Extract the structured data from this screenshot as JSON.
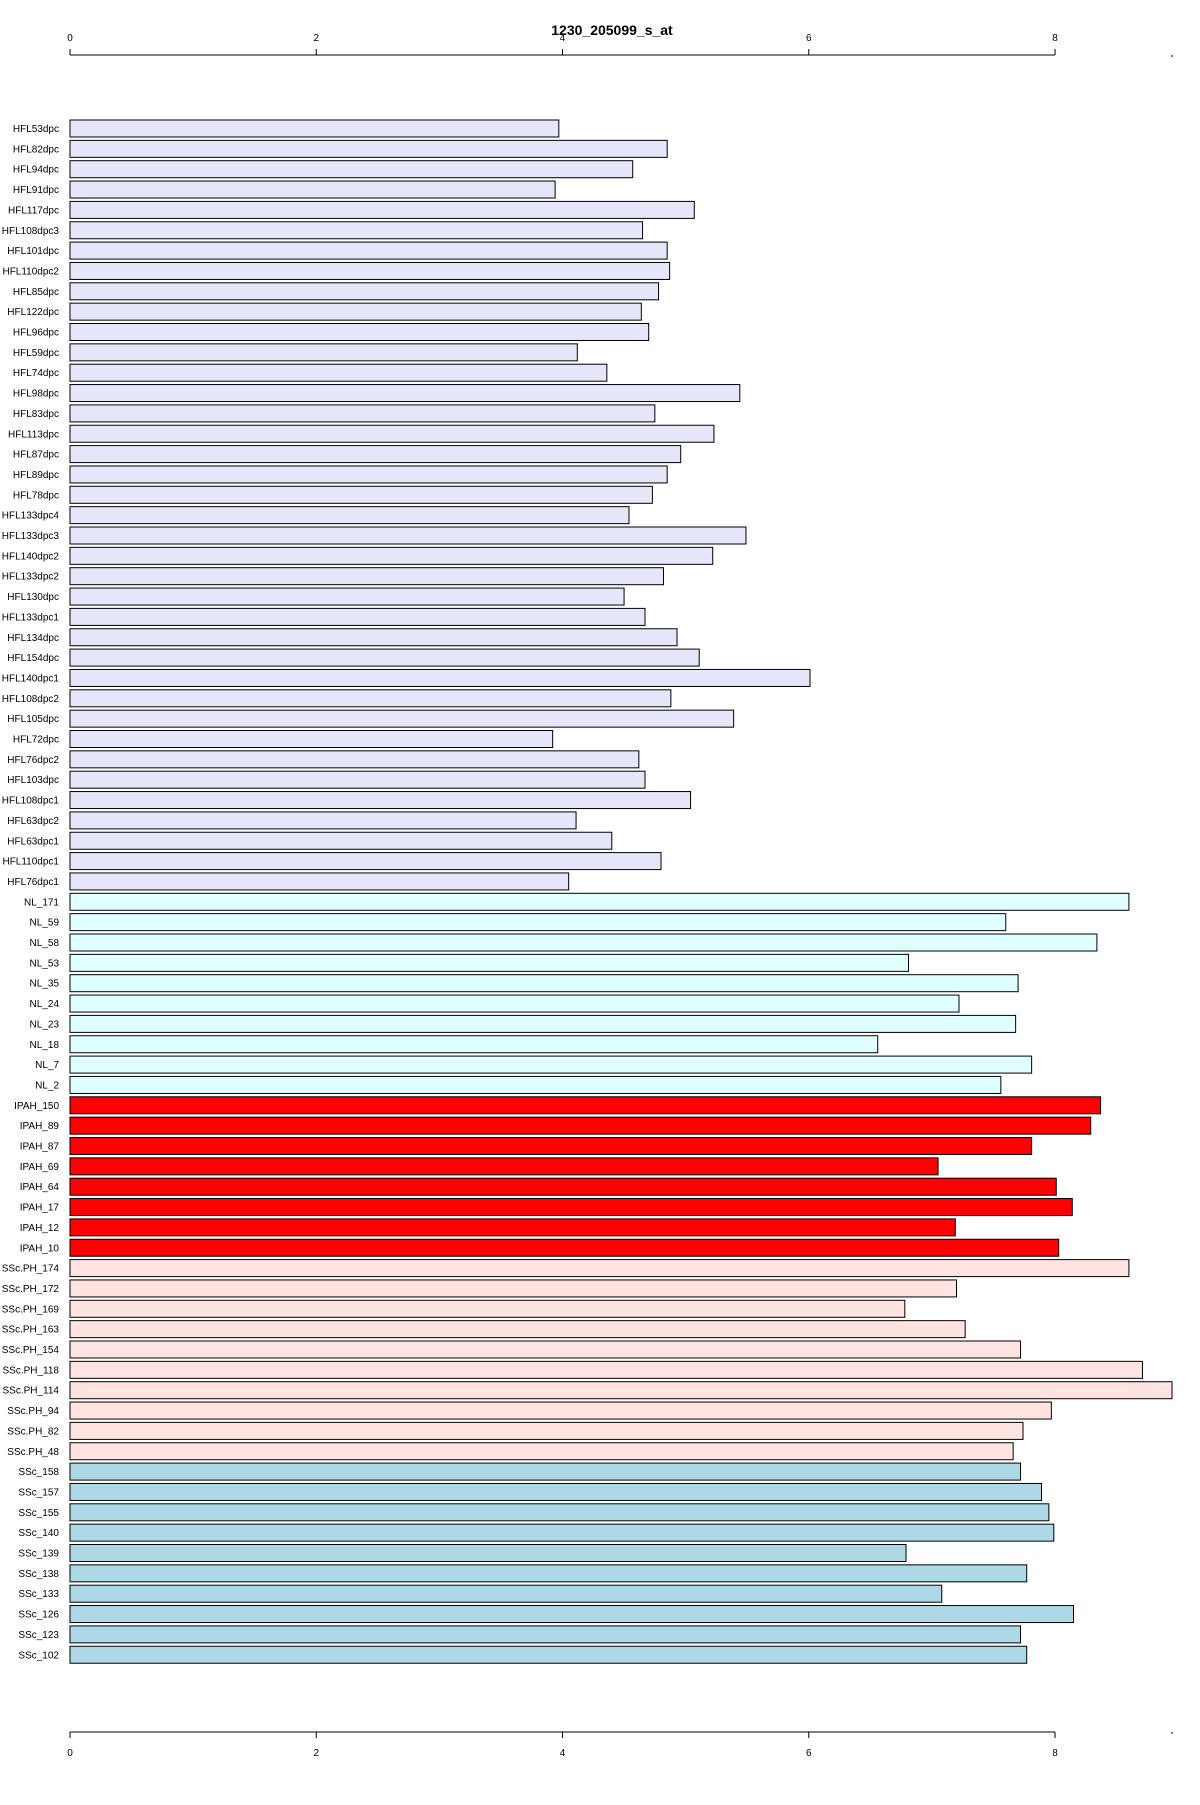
{
  "chart_data": {
    "type": "bar",
    "orientation": "horizontal",
    "title": "1230_205099_s_at",
    "xlabel": "",
    "ylabel": "",
    "xlim": [
      0,
      8.95
    ],
    "x_ticks": [
      0,
      2,
      4,
      6,
      8
    ],
    "axis_positions": [
      "top",
      "bottom"
    ],
    "grid": false,
    "legend": "none",
    "group_colors": {
      "HFL": "#e6e6fa",
      "NL": "#e0ffff",
      "IPAH": "#ff0000",
      "SSc.PH": "#ffe4e1",
      "SSc": "#add8e6"
    },
    "bar_outline": "#000000",
    "categories": [
      "HFL53dpc",
      "HFL82dpc",
      "HFL94dpc",
      "HFL91dpc",
      "HFL117dpc",
      "HFL108dpc3",
      "HFL101dpc",
      "HFL110dpc2",
      "HFL85dpc",
      "HFL122dpc",
      "HFL96dpc",
      "HFL59dpc",
      "HFL74dpc",
      "HFL98dpc",
      "HFL83dpc",
      "HFL113dpc",
      "HFL87dpc",
      "HFL89dpc",
      "HFL78dpc",
      "HFL133dpc4",
      "HFL133dpc3",
      "HFL140dpc2",
      "HFL133dpc2",
      "HFL130dpc",
      "HFL133dpc1",
      "HFL134dpc",
      "HFL154dpc",
      "HFL140dpc1",
      "HFL108dpc2",
      "HFL105dpc",
      "HFL72dpc",
      "HFL76dpc2",
      "HFL103dpc",
      "HFL108dpc1",
      "HFL63dpc2",
      "HFL63dpc1",
      "HFL110dpc1",
      "HFL76dpc1",
      "NL_171",
      "NL_59",
      "NL_58",
      "NL_53",
      "NL_35",
      "NL_24",
      "NL_23",
      "NL_18",
      "NL_7",
      "NL_2",
      "IPAH_150",
      "IPAH_89",
      "IPAH_87",
      "IPAH_69",
      "IPAH_64",
      "IPAH_17",
      "IPAH_12",
      "IPAH_10",
      "SSc.PH_174",
      "SSc.PH_172",
      "SSc.PH_169",
      "SSc.PH_163",
      "SSc.PH_154",
      "SSc.PH_118",
      "SSc.PH_114",
      "SSc.PH_94",
      "SSc.PH_82",
      "SSc.PH_48",
      "SSc_158",
      "SSc_157",
      "SSc_155",
      "SSc_140",
      "SSc_139",
      "SSc_138",
      "SSc_133",
      "SSc_126",
      "SSc_123",
      "SSc_102"
    ],
    "groups": [
      "HFL",
      "HFL",
      "HFL",
      "HFL",
      "HFL",
      "HFL",
      "HFL",
      "HFL",
      "HFL",
      "HFL",
      "HFL",
      "HFL",
      "HFL",
      "HFL",
      "HFL",
      "HFL",
      "HFL",
      "HFL",
      "HFL",
      "HFL",
      "HFL",
      "HFL",
      "HFL",
      "HFL",
      "HFL",
      "HFL",
      "HFL",
      "HFL",
      "HFL",
      "HFL",
      "HFL",
      "HFL",
      "HFL",
      "HFL",
      "HFL",
      "HFL",
      "HFL",
      "HFL",
      "NL",
      "NL",
      "NL",
      "NL",
      "NL",
      "NL",
      "NL",
      "NL",
      "NL",
      "NL",
      "IPAH",
      "IPAH",
      "IPAH",
      "IPAH",
      "IPAH",
      "IPAH",
      "IPAH",
      "IPAH",
      "SSc.PH",
      "SSc.PH",
      "SSc.PH",
      "SSc.PH",
      "SSc.PH",
      "SSc.PH",
      "SSc.PH",
      "SSc.PH",
      "SSc.PH",
      "SSc.PH",
      "SSc",
      "SSc",
      "SSc",
      "SSc",
      "SSc",
      "SSc",
      "SSc",
      "SSc",
      "SSc",
      "SSc"
    ],
    "values": [
      3.97,
      4.85,
      4.57,
      3.94,
      5.07,
      4.65,
      4.85,
      4.87,
      4.78,
      4.64,
      4.7,
      4.12,
      4.36,
      5.44,
      4.75,
      5.23,
      4.96,
      4.85,
      4.73,
      4.54,
      5.49,
      5.22,
      4.82,
      4.5,
      4.67,
      4.93,
      5.11,
      6.01,
      4.88,
      5.39,
      3.92,
      4.62,
      4.67,
      5.04,
      4.11,
      4.4,
      4.8,
      4.05,
      8.6,
      7.6,
      8.34,
      6.81,
      7.7,
      7.22,
      7.68,
      6.56,
      7.81,
      7.56,
      8.37,
      8.29,
      7.81,
      7.05,
      8.01,
      8.14,
      7.19,
      8.03,
      8.6,
      7.2,
      6.78,
      7.27,
      7.72,
      8.71,
      8.95,
      7.97,
      7.74,
      7.66,
      7.72,
      7.89,
      7.95,
      7.99,
      6.79,
      7.77,
      7.08,
      8.15,
      7.72,
      7.77
    ]
  }
}
